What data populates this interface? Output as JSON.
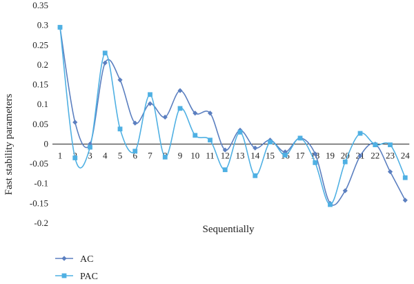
{
  "chart_data": {
    "type": "line",
    "title": "",
    "xlabel": "Sequentially",
    "ylabel": "Fast stability parameters",
    "categories": [
      "1",
      "2",
      "3",
      "4",
      "5",
      "6",
      "7",
      "8",
      "9",
      "10",
      "11",
      "12",
      "13",
      "14",
      "15",
      "16",
      "17",
      "18",
      "19",
      "20",
      "21",
      "22",
      "23",
      "24"
    ],
    "yticks": [
      "0.35",
      "0.3",
      "0.25",
      "0.2",
      "0.15",
      "0.1",
      "0.05",
      "0",
      "-0.05",
      "-0.1",
      "-0.15",
      "-0.2"
    ],
    "ylim": [
      -0.2,
      0.35
    ],
    "grid": false,
    "legend_position": "bottom-left",
    "smooth": true,
    "series": [
      {
        "name": "AC",
        "color": "#5b7fc0",
        "marker": "diamond",
        "values": [
          0.295,
          0.055,
          0.0,
          0.205,
          0.162,
          0.053,
          0.102,
          0.068,
          0.135,
          0.078,
          0.078,
          -0.015,
          0.035,
          -0.01,
          0.01,
          -0.02,
          0.015,
          -0.025,
          -0.15,
          -0.118,
          -0.03,
          0.0,
          -0.07,
          -0.142
        ]
      },
      {
        "name": "PAC",
        "color": "#4fb0e3",
        "marker": "square",
        "values": [
          0.295,
          -0.035,
          -0.008,
          0.23,
          0.038,
          -0.018,
          0.125,
          -0.033,
          0.09,
          0.022,
          0.01,
          -0.065,
          0.03,
          -0.08,
          0.005,
          -0.028,
          0.015,
          -0.047,
          -0.153,
          -0.045,
          0.027,
          -0.002,
          -0.002,
          -0.085
        ]
      }
    ]
  }
}
